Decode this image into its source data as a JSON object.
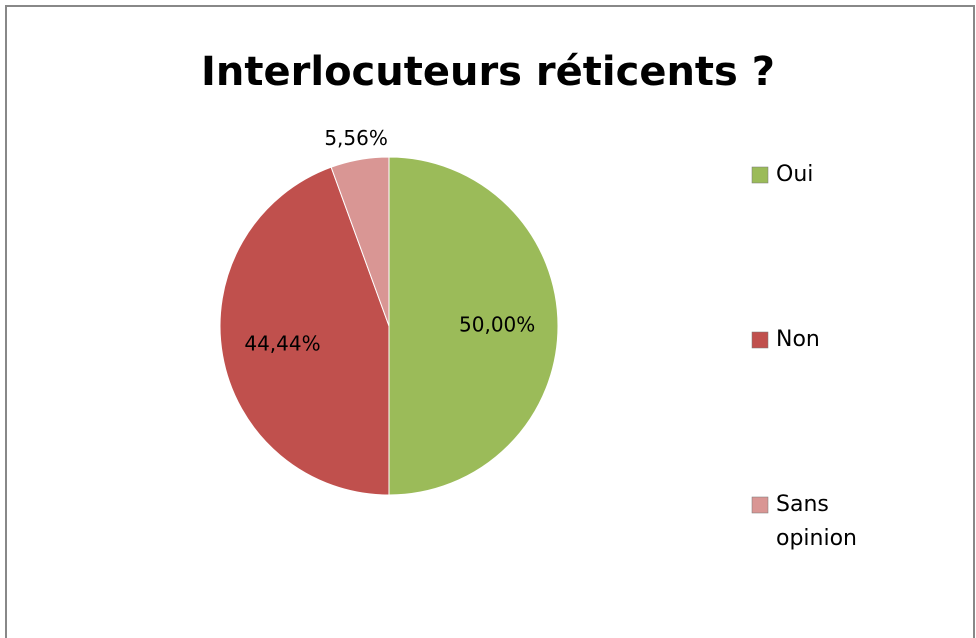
{
  "chart_data": {
    "type": "pie",
    "title": "Interlocuteurs réticents ?",
    "categories": [
      "Oui",
      "Non",
      "Sans opinion"
    ],
    "values": [
      50,
      44.44,
      5.56
    ],
    "value_labels": [
      "50,00%",
      "44,44%",
      "5,56%"
    ],
    "colors": [
      "#9bbb59",
      "#c0504d",
      "#d99694"
    ],
    "legend": "right"
  }
}
